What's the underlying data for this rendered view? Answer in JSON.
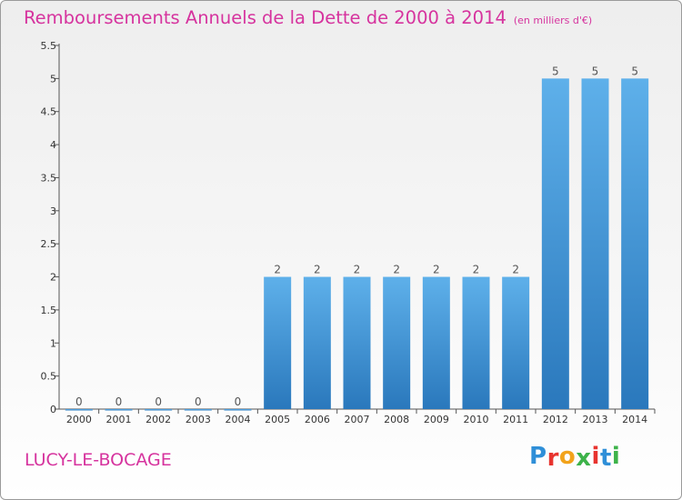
{
  "header": {
    "title": "Remboursements Annuels de la Dette de 2000 à 2014",
    "unit": "(en milliers d'€)"
  },
  "footer": {
    "commune": "LUCY-LE-BOCAGE",
    "logo_text": "Proxiti",
    "logo_colors": [
      "#2f8fd8",
      "#e8342f",
      "#f2a31b",
      "#3db34a",
      "#e8342f",
      "#2f8fd8",
      "#3db34a"
    ]
  },
  "colors": {
    "bar_top": "#5eb0ea",
    "bar_bottom": "#2a78bc",
    "title": "#d6339e"
  },
  "chart_data": {
    "type": "bar",
    "title": "Remboursements Annuels de la Dette de 2000 à 2014",
    "categories": [
      "2000",
      "2001",
      "2002",
      "2003",
      "2004",
      "2005",
      "2006",
      "2007",
      "2008",
      "2009",
      "2010",
      "2011",
      "2012",
      "2013",
      "2014"
    ],
    "values": [
      0,
      0,
      0,
      0,
      0,
      2,
      2,
      2,
      2,
      2,
      2,
      2,
      5,
      5,
      5
    ],
    "data_labels": [
      "0",
      "0",
      "0",
      "0",
      "0",
      "2",
      "2",
      "2",
      "2",
      "2",
      "2",
      "2",
      "5",
      "5",
      "5"
    ],
    "ylim": [
      0,
      5.5
    ],
    "yticks": [
      0,
      0.5,
      1,
      1.5,
      2,
      2.5,
      3,
      3.5,
      4,
      4.5,
      5,
      5.5
    ],
    "ytick_labels": [
      "0",
      "0.5",
      "1",
      "1.5",
      "2",
      "2.5",
      "3",
      "3.5",
      "4",
      "4.5",
      "5",
      "5.5"
    ],
    "grid": false,
    "legend": "none"
  }
}
